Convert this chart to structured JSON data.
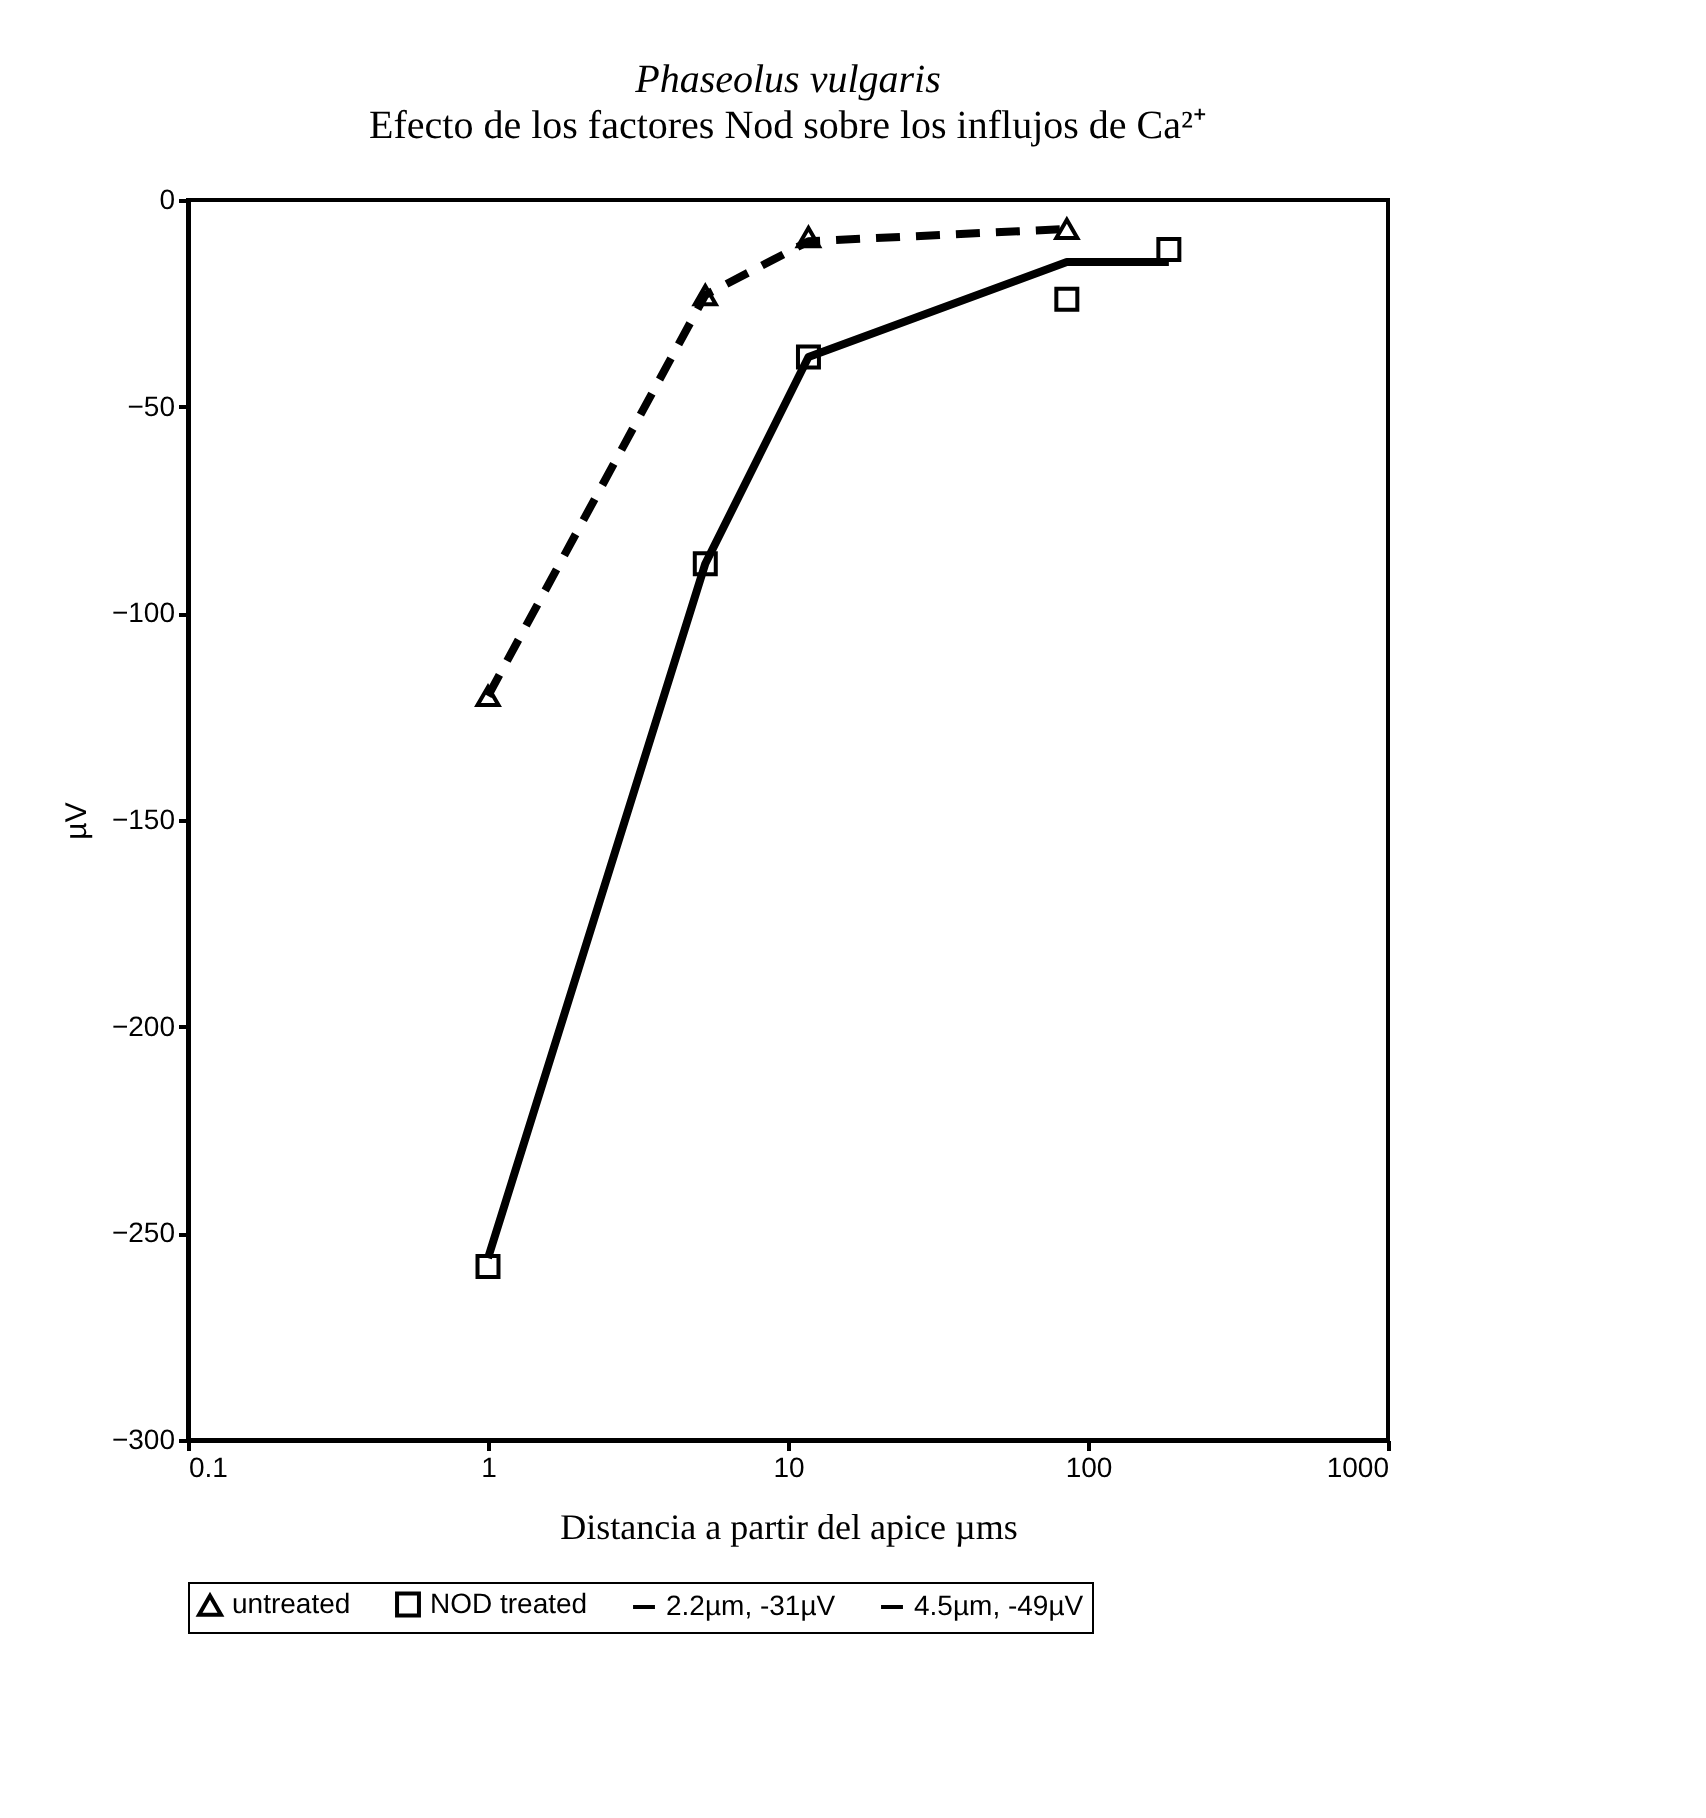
{
  "chart_data": {
    "type": "line",
    "title": "Phaseolus vulgaris",
    "subtitle": "Efecto de los factores Nod sobre los influjos de Ca²⁺",
    "xlabel": "Distancia a partir del apice  µms",
    "ylabel": "µV",
    "log": "x",
    "xlim": [
      0.1,
      1000
    ],
    "xticks": [
      0.1,
      1,
      10,
      100,
      1000
    ],
    "ylim": [
      -300,
      0
    ],
    "yticks": [
      -300,
      -250,
      -200,
      -150,
      -100,
      -50,
      0
    ],
    "grid": false,
    "legend": "bottom",
    "series": [
      {
        "name": "untreated",
        "type": "scatter",
        "marker": "triangle",
        "color": "#000000",
        "x": [
          1,
          5.3,
          11.7,
          85
        ],
        "values": [
          -120,
          -23,
          -9,
          -7
        ]
      },
      {
        "name": "NOD treated",
        "type": "scatter",
        "marker": "square",
        "color": "#000000",
        "x": [
          1,
          5.3,
          11.7,
          85,
          186
        ],
        "values": [
          -258,
          -88,
          -38,
          -24,
          -12
        ]
      },
      {
        "name": "2.2µm, -31µV",
        "type": "line",
        "line_style": "dashed",
        "color": "#000000",
        "x": [
          1,
          5.3,
          11.7,
          85
        ],
        "values": [
          -120,
          -23,
          -10,
          -7
        ]
      },
      {
        "name": "4.5µm, -49µV",
        "type": "line",
        "line_style": "solid",
        "color": "#000000",
        "x": [
          1,
          5.3,
          11.7,
          85,
          186
        ],
        "values": [
          -256,
          -88,
          -38,
          -15,
          -15
        ]
      }
    ]
  }
}
